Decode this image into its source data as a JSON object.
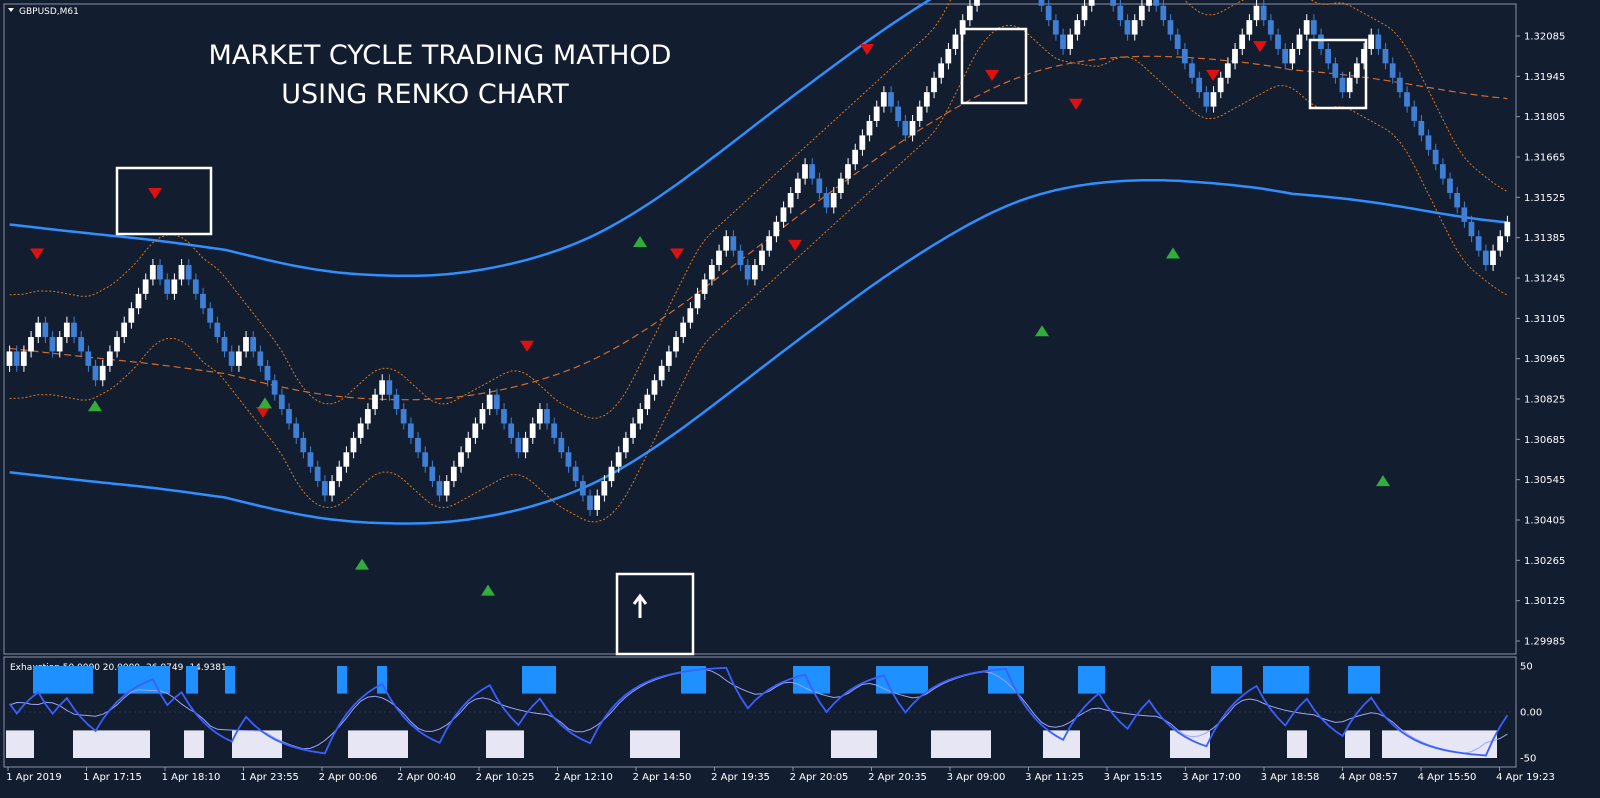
{
  "window": {
    "symbol_label": "GBPUSD,M61"
  },
  "annotation": {
    "line1": "MARKET CYCLE TRADING MATHOD",
    "line2": "USING RENKO CHART"
  },
  "colors": {
    "background": "#121d30",
    "bull": "#ffffff",
    "bear": "#3f7fd6",
    "envelope": "#2f8fff",
    "band": "#e07a1a",
    "midline": "#d8692a",
    "sell_arrow": "#e01010",
    "buy_arrow": "#2fae3a",
    "exh_upper": "#1e90ff",
    "exh_lower": "#e6e6f5",
    "exh_line_fast": "#3a5fff",
    "exh_line_slow": "#9aa6ff"
  },
  "chart_data": [
    {
      "type": "candlestick",
      "title": "GBPUSD,M61",
      "ylim": [
        1.2993,
        1.3215
      ],
      "y_ticks": [
        "1.32085",
        "1.31945",
        "1.31805",
        "1.31665",
        "1.31525",
        "1.31385",
        "1.31245",
        "1.31105",
        "1.30965",
        "1.30825",
        "1.30685",
        "1.30545",
        "1.30405",
        "1.30265",
        "1.30125",
        "1.29985"
      ],
      "x_ticks": [
        "1 Apr 2019",
        "1 Apr 17:15",
        "1 Apr 18:10",
        "1 Apr 23:55",
        "2 Apr 00:06",
        "2 Apr 00:40",
        "2 Apr 10:25",
        "2 Apr 12:10",
        "2 Apr 14:50",
        "2 Apr 19:35",
        "2 Apr 20:05",
        "2 Apr 20:35",
        "3 Apr 09:00",
        "3 Apr 11:25",
        "3 Apr 15:15",
        "3 Apr 17:00",
        "3 Apr 18:58",
        "4 Apr 08:57",
        "4 Apr 15:50",
        "4 Apr 19:23"
      ],
      "bricks": [
        1,
        -1,
        1,
        1,
        1,
        -1,
        -1,
        1,
        1,
        -1,
        -1,
        -1,
        -1,
        1,
        1,
        1,
        1,
        1,
        1,
        1,
        1,
        -1,
        -1,
        1,
        1,
        -1,
        -1,
        -1,
        -1,
        -1,
        -1,
        -1,
        1,
        1,
        -1,
        -1,
        -1,
        -1,
        -1,
        -1,
        -1,
        -1,
        -1,
        -1,
        -1,
        1,
        1,
        1,
        1,
        1,
        1,
        1,
        1,
        -1,
        -1,
        -1,
        -1,
        -1,
        -1,
        -1,
        -1,
        1,
        1,
        1,
        1,
        1,
        1,
        1,
        -1,
        -1,
        -1,
        -1,
        1,
        1,
        1,
        -1,
        -1,
        -1,
        -1,
        -1,
        -1,
        -1,
        1,
        1,
        1,
        1,
        1,
        1,
        1,
        1,
        1,
        1,
        1,
        1,
        1,
        1,
        1,
        1,
        1,
        1,
        1,
        -1,
        -1,
        -1,
        1,
        1,
        1,
        1,
        1,
        1,
        1,
        1,
        -1,
        -1,
        -1,
        1,
        1,
        1,
        1,
        1,
        1,
        1,
        1,
        -1,
        -1,
        -1,
        1,
        1,
        1,
        1,
        1,
        1,
        1,
        1,
        1,
        1,
        1,
        1,
        1,
        1,
        -1,
        -1,
        -1,
        -1,
        -1,
        -1,
        -1,
        -1,
        1,
        1,
        1,
        1,
        1,
        -1,
        -1,
        -1,
        -1,
        1,
        1,
        1,
        -1,
        -1,
        -1,
        -1,
        -1,
        -1,
        -1,
        -1,
        1,
        1,
        1,
        1,
        1,
        1,
        1,
        -1,
        -1,
        -1,
        -1,
        1,
        1,
        1,
        -1,
        -1,
        -1,
        -1,
        -1,
        1,
        1,
        1,
        1,
        -1,
        -1,
        -1,
        -1,
        -1,
        -1,
        -1,
        -1,
        -1,
        -1,
        -1,
        -1,
        -1,
        -1,
        -1,
        -1,
        1,
        1,
        1
      ],
      "start_price": 1.3094,
      "brick_size": 0.0005,
      "sell_arrows": [
        1.3133,
        1.3154,
        1.3078,
        1.3101,
        1.3133,
        1.3136,
        1.3204,
        1.3195,
        1.3185,
        1.3195,
        1.3205
      ],
      "buy_arrows": [
        1.308,
        1.3081,
        1.3025,
        1.3016,
        1.3137,
        1.3106,
        1.3133,
        1.3054
      ]
    },
    {
      "type": "oscillator",
      "title": "Exhaustion",
      "params_label": "Exhaustion  50.0000 20.0000 -26.9749 -14.9381",
      "ylim": [
        -50,
        50
      ],
      "y_ticks": [
        "50",
        "0.00",
        "-50"
      ]
    }
  ]
}
